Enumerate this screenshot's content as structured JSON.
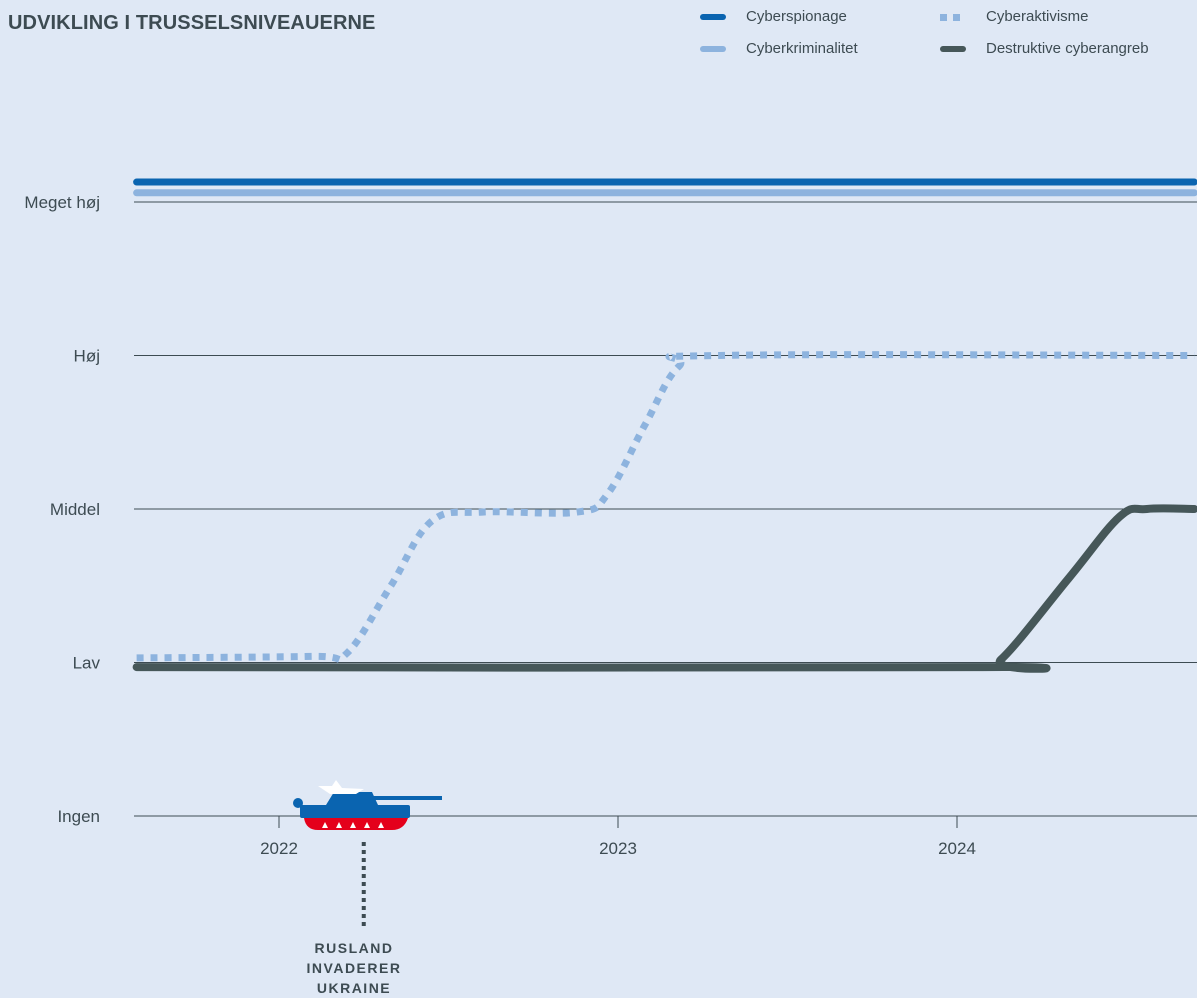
{
  "title": "UDVIKLING I TRUSSELSNIVEAUERNE",
  "colors": {
    "background": "#dfe8f5",
    "grid": "#3d4b52",
    "text": "#3d4b52",
    "cyberspionage": "#0a64b0",
    "cyberkriminalitet": "#8db3de",
    "cyberaktivisme": "#8db3de",
    "destruktive": "#465759"
  },
  "legend": [
    {
      "label": "Cyberspionage",
      "style": "solid",
      "color": "#0a64b0"
    },
    {
      "label": "Cyberaktivisme",
      "style": "dotted",
      "color": "#8db3de"
    },
    {
      "label": "Cyberkriminalitet",
      "style": "solid",
      "color": "#8db3de"
    },
    {
      "label": "Destruktive cyberangreb",
      "style": "solid",
      "color": "#465759"
    }
  ],
  "annotation": {
    "lines": [
      "RUSLAND",
      "INVADERER",
      "UKRAINE"
    ],
    "x": 2022.25,
    "icon": "tank-icon"
  },
  "chart_data": {
    "type": "line",
    "title": "UDVIKLING I TRUSSELSNIVEAUERNE",
    "xlabel": "",
    "ylabel": "",
    "xlim": [
      2021.57,
      2024.7
    ],
    "ylim": [
      0,
      4
    ],
    "x_ticks": [
      2022,
      2023,
      2024
    ],
    "x_tick_labels": [
      "2022",
      "2023",
      "2024"
    ],
    "y_ticks": [
      0,
      1,
      2,
      3,
      4
    ],
    "y_tick_labels": [
      "Ingen",
      "Lav",
      "Middel",
      "Høj",
      "Meget høj"
    ],
    "grid": "horizontal",
    "series": [
      {
        "name": "Cyberspionage",
        "style": "solid",
        "color": "#0a64b0",
        "x": [
          2021.58,
          2024.7
        ],
        "y": [
          4.13,
          4.13
        ]
      },
      {
        "name": "Cyberkriminalitet",
        "style": "solid",
        "color": "#8db3de",
        "x": [
          2021.58,
          2024.7
        ],
        "y": [
          4.06,
          4.06
        ]
      },
      {
        "name": "Cyberaktivisme",
        "style": "dotted",
        "color": "#8db3de",
        "x": [
          2021.58,
          2022.1,
          2022.2,
          2022.33,
          2022.45,
          2022.6,
          2022.88,
          2022.97,
          2023.08,
          2023.18,
          2023.3,
          2024.7
        ],
        "y": [
          1.03,
          1.04,
          1.06,
          1.5,
          1.92,
          1.98,
          1.98,
          2.1,
          2.55,
          2.93,
          3.0,
          3.0
        ]
      },
      {
        "name": "Destruktive cyberangreb",
        "style": "solid",
        "color": "#465759",
        "x": [
          2021.58,
          2024.05,
          2024.13,
          2024.33,
          2024.48,
          2024.56,
          2024.7
        ],
        "y": [
          0.97,
          0.97,
          1.02,
          1.55,
          1.95,
          2.0,
          2.0
        ]
      }
    ]
  }
}
